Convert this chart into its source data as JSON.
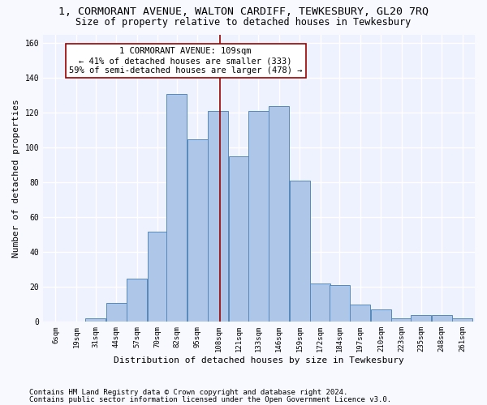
{
  "title": "1, CORMORANT AVENUE, WALTON CARDIFF, TEWKESBURY, GL20 7RQ",
  "subtitle": "Size of property relative to detached houses in Tewkesbury",
  "xlabel": "Distribution of detached houses by size in Tewkesbury",
  "ylabel": "Number of detached properties",
  "footer_line1": "Contains HM Land Registry data © Crown copyright and database right 2024.",
  "footer_line2": "Contains public sector information licensed under the Open Government Licence v3.0.",
  "bins": [
    6,
    19,
    31,
    44,
    57,
    70,
    82,
    95,
    108,
    121,
    133,
    146,
    159,
    172,
    184,
    197,
    210,
    223,
    235,
    248,
    261
  ],
  "values": [
    0,
    0,
    2,
    11,
    25,
    52,
    131,
    105,
    121,
    95,
    121,
    124,
    81,
    22,
    21,
    10,
    7,
    2,
    4,
    4,
    2
  ],
  "bar_color": "#aec6e8",
  "bar_edge_color": "#5588bb",
  "property_size": 109,
  "vline_color": "#990000",
  "annotation_text": "1 CORMORANT AVENUE: 109sqm\n← 41% of detached houses are smaller (333)\n59% of semi-detached houses are larger (478) →",
  "annotation_box_color": "#ffffff",
  "annotation_box_edge_color": "#990000",
  "ylim": [
    0,
    165
  ],
  "yticks": [
    0,
    20,
    40,
    60,
    80,
    100,
    120,
    140,
    160
  ],
  "background_color": "#eef2ff",
  "grid_color": "#ffffff",
  "fig_bg_color": "#f8f9ff",
  "title_fontsize": 9.5,
  "subtitle_fontsize": 8.5,
  "tick_label_fontsize": 6.5,
  "ylabel_fontsize": 8,
  "xlabel_fontsize": 8,
  "footer_fontsize": 6.5,
  "annotation_fontsize": 7.5
}
